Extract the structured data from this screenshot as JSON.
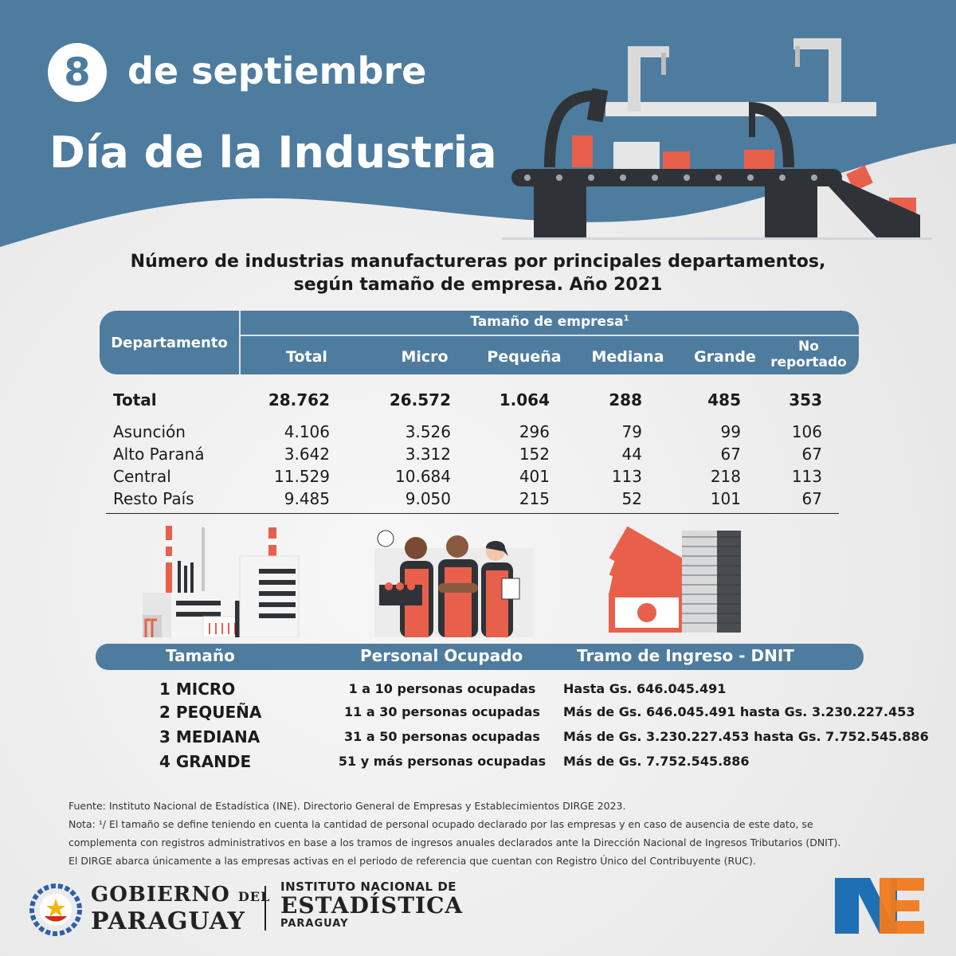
{
  "header": {
    "day": "8",
    "date_text": "de septiembre",
    "title": "Día de la Industria"
  },
  "table": {
    "title_line1": "Número de industrias manufactureras por principales departamentos,",
    "title_line2": "según tamaño de empresa. Año 2021",
    "col_departamento": "Departamento",
    "col_group": "Tamaño de empresa",
    "col_group_sup": "1",
    "columns": [
      "Total",
      "Micro",
      "Pequeña",
      "Mediana",
      "Grande",
      "No",
      "reportado"
    ],
    "rows": [
      {
        "name": "Total",
        "total": "28.762",
        "micro": "26.572",
        "pequena": "1.064",
        "mediana": "288",
        "grande": "485",
        "no_reportado": "353"
      },
      {
        "name": "Asunción",
        "total": "4.106",
        "micro": "3.526",
        "pequena": "296",
        "mediana": "79",
        "grande": "99",
        "no_reportado": "106"
      },
      {
        "name": "Alto Paraná",
        "total": "3.642",
        "micro": "3.312",
        "pequena": "152",
        "mediana": "44",
        "grande": "67",
        "no_reportado": "67"
      },
      {
        "name": "Central",
        "total": "11.529",
        "micro": "10.684",
        "pequena": "401",
        "mediana": "113",
        "grande": "218",
        "no_reportado": "113"
      },
      {
        "name": "Resto País",
        "total": "9.485",
        "micro": "9.050",
        "pequena": "215",
        "mediana": "52",
        "grande": "101",
        "no_reportado": "67"
      }
    ]
  },
  "legend": {
    "col_size": "Tamaño",
    "col_staff": "Personal Ocupado",
    "col_income": "Tramo de Ingreso - DNIT",
    "rows": [
      {
        "size": "1 MICRO",
        "staff": "1 a 10 personas ocupadas",
        "income": "Hasta  Gs. 646.045.491"
      },
      {
        "size": "2 PEQUEÑA",
        "staff": "11 a 30 personas ocupadas",
        "income": "Más de Gs. 646.045.491 hasta Gs. 3.230.227.453"
      },
      {
        "size": "3 MEDIANA",
        "staff": "31 a 50 personas ocupadas",
        "income": "Más de Gs. 3.230.227.453 hasta Gs. 7.752.545.886"
      },
      {
        "size": "4 GRANDE",
        "staff": "51 y más personas ocupadas",
        "income": "Más de Gs. 7.752.545.886"
      }
    ]
  },
  "notes": {
    "source": "Fuente: Instituto Nacional de Estadística (INE). Directorio General de Empresas y Establecimientos DIRGE 2023.",
    "note_line1": "Nota: ¹/ El tamaño se define teniendo en cuenta la cantidad de personal ocupado declarado por las empresas y en caso de ausencia de este dato, se",
    "note_line2": "complementa con registros administrativos en base a los tramos de ingresos anuales declarados ante la Dirección Nacional de Ingresos Tributarios (DNIT).",
    "note_line3": "El DIRGE abarca únicamente a las empresas activas en el periodo de referencia que cuentan con Registro Único del Contribuyente (RUC)."
  },
  "footer": {
    "gov_line1_a": "GOBIERNO",
    "gov_line1_b": "DEL",
    "gov_line2": "PARAGUAY",
    "ine_line1": "INSTITUTO NACIONAL DE",
    "ine_line2": "ESTADÍSTICA",
    "ine_line3": "PARAGUAY",
    "ine_logo_text": "INE"
  },
  "colors": {
    "header_blue": "#4e7c9e",
    "accent_orange": "#e8604c",
    "dark": "#2b2f33"
  }
}
